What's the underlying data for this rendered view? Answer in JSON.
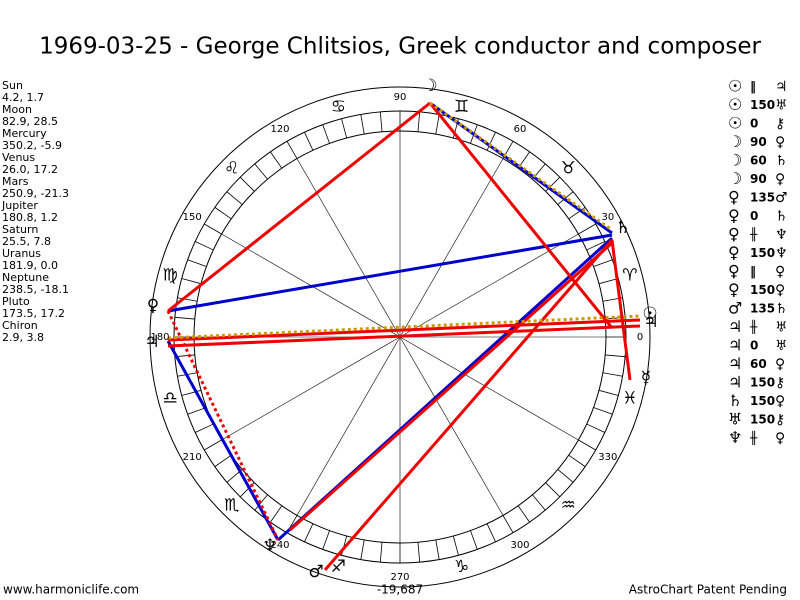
{
  "title": "1969-03-25 - George Chlitsios, Greek conductor and composer",
  "planets": [
    {
      "name": "Sun",
      "pos": "4.2, 1.7"
    },
    {
      "name": "Moon",
      "pos": "82.9, 28.5"
    },
    {
      "name": "Mercury",
      "pos": "350.2, -5.9"
    },
    {
      "name": "Venus",
      "pos": "26.0, 17.2"
    },
    {
      "name": "Mars",
      "pos": "250.9, -21.3"
    },
    {
      "name": "Jupiter",
      "pos": "180.8, 1.2"
    },
    {
      "name": "Saturn",
      "pos": "25.5, 7.8"
    },
    {
      "name": "Uranus",
      "pos": "181.9, 0.0"
    },
    {
      "name": "Neptune",
      "pos": "238.5, -18.1"
    },
    {
      "name": "Pluto",
      "pos": "173.5, 17.2"
    },
    {
      "name": "Chiron",
      "pos": "2.9, 3.8"
    }
  ],
  "aspects": [
    [
      "☉",
      "‖",
      "♃"
    ],
    [
      "☉",
      "150",
      "♅"
    ],
    [
      "☉",
      "0",
      "⚷"
    ],
    [
      "☽",
      "90",
      "♀"
    ],
    [
      "☽",
      "60",
      "♄"
    ],
    [
      "☽",
      "90",
      "♀"
    ],
    [
      "♀",
      "135",
      "♂"
    ],
    [
      "♀",
      "0",
      "♄"
    ],
    [
      "♀",
      "╫",
      "♆"
    ],
    [
      "♀",
      "150",
      "♆"
    ],
    [
      "♀",
      "‖",
      "♀"
    ],
    [
      "♀",
      "150",
      "♀"
    ],
    [
      "♂",
      "135",
      "♄"
    ],
    [
      "♃",
      "╫",
      "♅"
    ],
    [
      "♃",
      "0",
      "♅"
    ],
    [
      "♃",
      "60",
      "♀"
    ],
    [
      "♃",
      "150",
      "⚷"
    ],
    [
      "♄",
      "150",
      "♀"
    ],
    [
      "♅",
      "150",
      "⚷"
    ],
    [
      "♆",
      "╫",
      "♀"
    ]
  ],
  "degree_labels": [
    "0",
    "30",
    "60",
    "90",
    "120",
    "150",
    "180",
    "210",
    "240",
    "270",
    "300",
    "330"
  ],
  "zodiac": [
    "♈",
    "♉",
    "♊",
    "♋",
    "♌",
    "♍",
    "♎",
    "♏",
    "♐",
    "♑",
    "♒",
    "♓"
  ],
  "wheel_glyphs": [
    "☽",
    "♄",
    "☉",
    "♃",
    "☿",
    "♀",
    "♃",
    "♆",
    "♂"
  ],
  "center_value": "-19,687",
  "footer_left": "www.harmoniclife.com",
  "footer_right": "AstroChart Patent Pending"
}
